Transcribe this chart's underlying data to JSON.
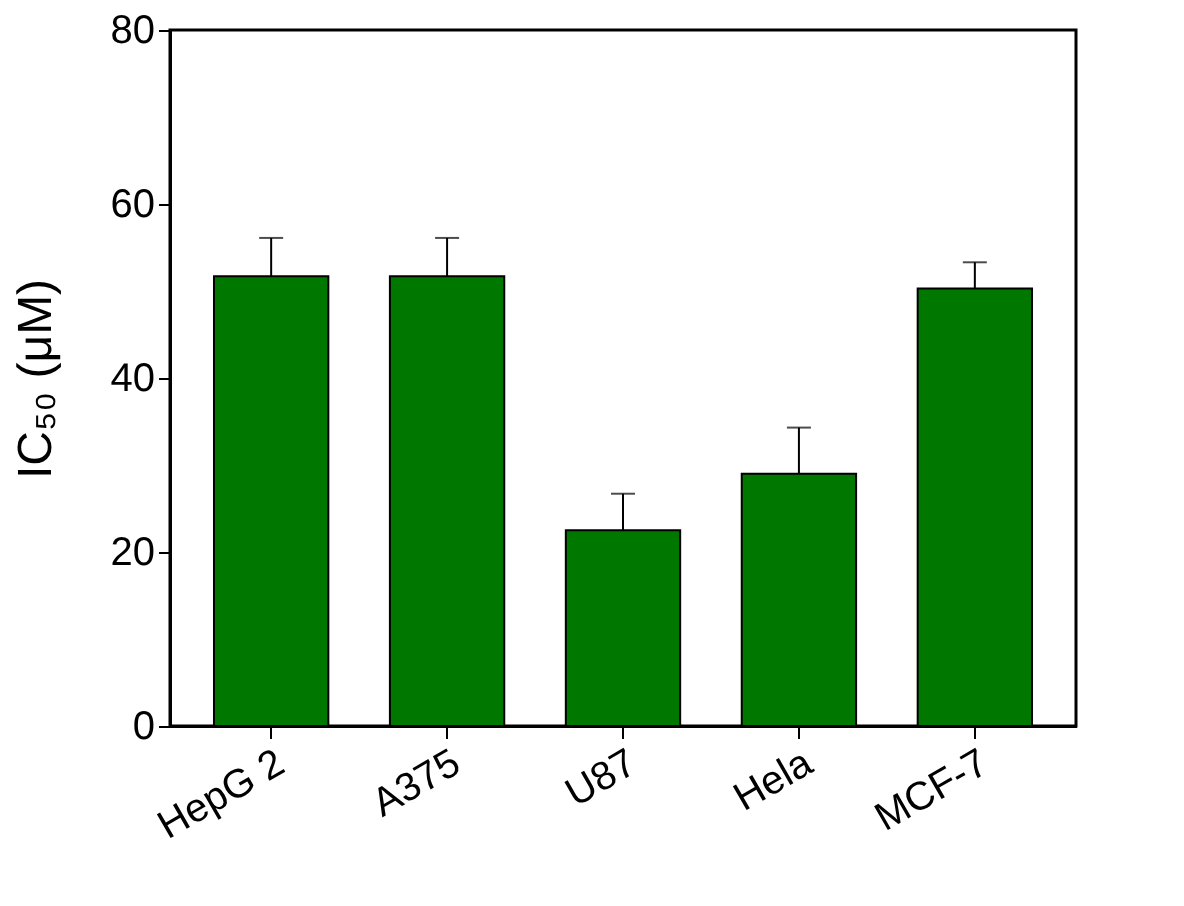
{
  "chart_data": {
    "type": "bar",
    "ylabel": "IC₅₀ (μM)",
    "categories": [
      "HepG 2",
      "A375",
      "U87",
      "Hela",
      "MCF-7"
    ],
    "values": [
      51.7,
      51.7,
      22.5,
      29.0,
      50.3
    ],
    "errors": [
      [
        51.7,
        56.1
      ],
      [
        51.7,
        56.1
      ],
      [
        22.5,
        26.7
      ],
      [
        29.0,
        34.3
      ],
      [
        50.3,
        53.3
      ]
    ],
    "color": "#007800",
    "ylim": [
      0,
      80
    ],
    "yticks": [
      0,
      20,
      40,
      60,
      80
    ],
    "grid": false
  }
}
